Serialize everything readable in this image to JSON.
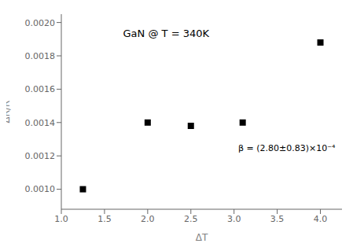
{
  "chart_data": {
    "type": "scatter",
    "title": "GaN @ T = 340K",
    "x_label": "ΔT",
    "y_label": "ΔR/R",
    "x": [
      1.25,
      2.0,
      2.5,
      3.1,
      4.0
    ],
    "values": [
      0.001,
      0.0014,
      0.00138,
      0.0014,
      0.00188
    ],
    "color": "black",
    "marker": "square",
    "xlim": [
      1.0,
      4.25
    ],
    "ylim": [
      0.00088,
      0.00205
    ],
    "xticks": [
      {
        "value": 1.0,
        "label": "1.0"
      },
      1.5,
      {
        "value": 2.0,
        "label": "2.0"
      },
      2.5,
      {
        "value": 3.0,
        "label": "3.0"
      },
      3.5,
      {
        "value": 4.0,
        "label": "4.0"
      }
    ],
    "yticks": [
      {
        "value": 0.001,
        "label": "0.0010"
      },
      {
        "value": 0.0012,
        "label": "0.0012"
      },
      {
        "value": 0.0014,
        "label": "0.0014"
      },
      {
        "value": 0.0016,
        "label": "0.0016"
      },
      {
        "value": 0.0018,
        "label": "0.0018"
      },
      {
        "value": 0.002,
        "label": "0.0020"
      }
    ],
    "annotations": [
      "β = (2.80±0.83)×10⁻⁴"
    ],
    "grid": false
  }
}
